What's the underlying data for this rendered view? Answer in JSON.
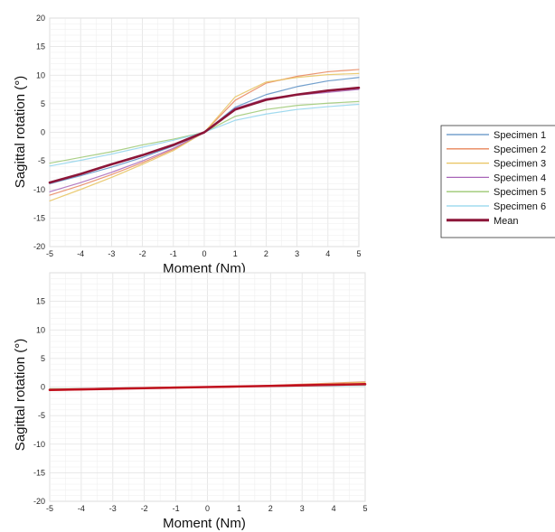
{
  "chart_data": [
    {
      "type": "line",
      "xlabel": "Moment (Nm)",
      "ylabel": "Sagittal rotation (°)",
      "xlim": [
        -5,
        5
      ],
      "ylim": [
        -20,
        20
      ],
      "x_ticks": [
        "-5",
        "-4",
        "-3",
        "-2",
        "-1",
        "0",
        "1",
        "2",
        "3",
        "4",
        "5"
      ],
      "y_ticks": [
        "-20",
        "-15",
        "-10",
        "-5",
        "0",
        "5",
        "10",
        "15",
        "20"
      ],
      "grid": true,
      "x": [
        -5,
        -4,
        -3,
        -2,
        -1,
        0,
        1,
        2,
        3,
        4,
        5
      ],
      "series": [
        {
          "name": "Specimen 1",
          "color": "#5b8fc4",
          "values": [
            -9.0,
            -7.6,
            -6.1,
            -4.4,
            -2.4,
            0,
            4.4,
            6.6,
            8.0,
            9.0,
            9.6
          ]
        },
        {
          "name": "Specimen 2",
          "color": "#e8845a",
          "values": [
            -11.0,
            -9.3,
            -7.4,
            -5.3,
            -3.0,
            0,
            5.6,
            8.6,
            9.8,
            10.6,
            11.0
          ]
        },
        {
          "name": "Specimen 3",
          "color": "#e8c35e",
          "values": [
            -12.0,
            -10.0,
            -7.9,
            -5.6,
            -3.2,
            0,
            6.2,
            8.8,
            9.6,
            10.1,
            10.3
          ]
        },
        {
          "name": "Specimen 4",
          "color": "#a866b8",
          "values": [
            -10.4,
            -8.8,
            -7.0,
            -5.0,
            -2.8,
            0,
            4.2,
            5.9,
            6.5,
            7.0,
            7.5
          ]
        },
        {
          "name": "Specimen 5",
          "color": "#9cc872",
          "values": [
            -5.4,
            -4.4,
            -3.4,
            -2.2,
            -1.2,
            0,
            2.8,
            4.0,
            4.7,
            5.1,
            5.4
          ]
        },
        {
          "name": "Specimen 6",
          "color": "#8fd4ec",
          "values": [
            -5.9,
            -4.9,
            -3.8,
            -2.6,
            -1.4,
            0,
            2.1,
            3.2,
            4.0,
            4.5,
            4.9
          ]
        },
        {
          "name": "Mean",
          "color": "#8c1538",
          "bold": true,
          "values": [
            -8.8,
            -7.3,
            -5.6,
            -4.0,
            -2.2,
            0,
            4.0,
            5.7,
            6.6,
            7.3,
            7.8
          ]
        }
      ],
      "legend": "right"
    },
    {
      "type": "line",
      "xlabel": "Moment (Nm)",
      "ylabel": "Sagittal rotation (°)",
      "xlim": [
        -5,
        5
      ],
      "ylim": [
        -20,
        20
      ],
      "x_ticks": [
        "-5",
        "-4",
        "-3",
        "-2",
        "-1",
        "0",
        "1",
        "2",
        "3",
        "4",
        "5"
      ],
      "y_ticks": [
        "-20",
        "-15",
        "-10",
        "-5",
        "0",
        "5",
        "10",
        "15"
      ],
      "grid": true,
      "x": [
        -5,
        -4,
        -3,
        -2,
        -1,
        0,
        1,
        2,
        3,
        4,
        5
      ],
      "series": [
        {
          "name": "Specimen 1",
          "color": "#5b8fc4",
          "values": [
            -0.5,
            -0.4,
            -0.3,
            -0.2,
            -0.1,
            0,
            0.1,
            0.2,
            0.3,
            0.4,
            0.5
          ]
        },
        {
          "name": "Specimen 2",
          "color": "#e8845a",
          "values": [
            -0.6,
            -0.5,
            -0.3,
            -0.2,
            -0.1,
            0,
            0.1,
            0.3,
            0.5,
            0.7,
            0.9
          ]
        },
        {
          "name": "Specimen 3",
          "color": "#e8c35e",
          "values": [
            -0.4,
            -0.3,
            -0.2,
            -0.1,
            0,
            0,
            0.1,
            0.2,
            0.4,
            0.6,
            0.8
          ]
        },
        {
          "name": "Specimen 4",
          "color": "#a866b8",
          "values": [
            -0.5,
            -0.4,
            -0.3,
            -0.2,
            -0.1,
            0,
            0.1,
            0.2,
            0.3,
            0.3,
            0.4
          ]
        },
        {
          "name": "Specimen 5",
          "color": "#9cc872",
          "values": [
            -0.3,
            -0.3,
            -0.2,
            -0.1,
            0,
            0,
            0.1,
            0.1,
            0.2,
            0.3,
            0.3
          ]
        },
        {
          "name": "Specimen 6",
          "color": "#8fd4ec",
          "values": [
            -0.4,
            -0.3,
            -0.2,
            -0.1,
            -0.1,
            0,
            0.1,
            0.1,
            0.2,
            0.2,
            0.3
          ]
        },
        {
          "name": "Mean",
          "color": "#c0101e",
          "bold": true,
          "values": [
            -0.5,
            -0.4,
            -0.3,
            -0.2,
            -0.1,
            0,
            0.1,
            0.2,
            0.3,
            0.4,
            0.5
          ]
        }
      ]
    }
  ]
}
